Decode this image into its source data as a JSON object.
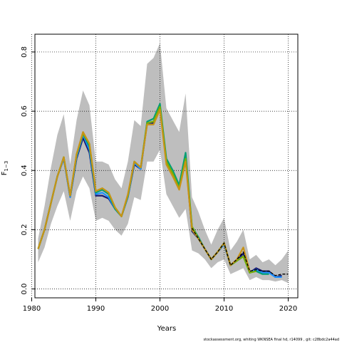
{
  "chart_data": {
    "type": "line",
    "xlabel": "Years",
    "ylabel_main": "F",
    "ylabel_sub": "1−3",
    "xlim": [
      1980.5,
      2021.5
    ],
    "ylim": [
      -0.03,
      0.86
    ],
    "x_ticks": [
      1980,
      1990,
      2000,
      2010,
      2020
    ],
    "y_ticks": [
      0.0,
      0.2,
      0.4,
      0.6,
      0.8
    ],
    "y_tick_labels": [
      "0.0",
      "0.2",
      "0.4",
      "0.6",
      "0.8"
    ],
    "grid": "dotted",
    "footer": "stockassessment.org,  whiting  WKNSEA  final  hd,  r14099 ,  git:  c28bdc2a44ad",
    "years": [
      1981,
      1982,
      1983,
      1984,
      1985,
      1986,
      1987,
      1988,
      1989,
      1990,
      1991,
      1992,
      1993,
      1994,
      1995,
      1996,
      1997,
      1998,
      1999,
      2000,
      2001,
      2002,
      2003,
      2004,
      2005,
      2006,
      2007,
      2008,
      2009,
      2010,
      2011,
      2012,
      2013,
      2014,
      2015,
      2016,
      2017,
      2018,
      2019,
      2020
    ],
    "band": {
      "color": "#bebebe",
      "lower": [
        0.09,
        0.14,
        0.22,
        0.28,
        0.33,
        0.23,
        0.33,
        0.38,
        0.34,
        0.23,
        0.24,
        0.23,
        0.2,
        0.18,
        0.22,
        0.31,
        0.3,
        0.43,
        0.43,
        0.47,
        0.32,
        0.28,
        0.24,
        0.27,
        0.13,
        0.12,
        0.1,
        0.07,
        0.09,
        0.1,
        0.05,
        0.06,
        0.07,
        0.03,
        0.04,
        0.03,
        0.03,
        0.025,
        0.03,
        0.02
      ],
      "upper": [
        0.17,
        0.28,
        0.41,
        0.52,
        0.59,
        0.42,
        0.57,
        0.67,
        0.62,
        0.43,
        0.43,
        0.42,
        0.37,
        0.34,
        0.43,
        0.57,
        0.55,
        0.76,
        0.78,
        0.83,
        0.61,
        0.57,
        0.53,
        0.66,
        0.31,
        0.26,
        0.2,
        0.15,
        0.2,
        0.24,
        0.13,
        0.16,
        0.2,
        0.1,
        0.115,
        0.09,
        0.1,
        0.08,
        0.1,
        0.13
      ]
    },
    "series": [
      {
        "color": "#191970",
        "values": [
          0.135,
          0.2,
          0.29,
          0.38,
          0.44,
          0.31,
          0.44,
          0.51,
          0.46,
          0.315,
          0.315,
          0.305,
          0.27,
          0.245,
          0.31,
          0.42,
          0.405,
          0.56,
          0.56,
          0.61,
          0.43,
          0.39,
          0.345,
          0.445,
          0.195,
          0.17,
          0.135,
          0.1,
          0.125,
          0.15,
          0.08,
          0.095,
          0.12,
          0.055,
          0.07,
          0.06,
          0.06,
          0.04,
          0.045,
          null
        ]
      },
      {
        "color": "#1e90ff",
        "values": [
          0.135,
          0.2,
          0.29,
          0.38,
          0.44,
          0.31,
          0.445,
          0.52,
          0.47,
          0.32,
          0.325,
          0.31,
          0.27,
          0.245,
          0.31,
          0.425,
          0.405,
          0.56,
          0.565,
          0.615,
          0.435,
          0.395,
          0.35,
          0.455,
          0.2,
          0.17,
          0.135,
          0.1,
          0.125,
          0.15,
          0.08,
          0.095,
          0.11,
          0.055,
          0.065,
          0.055,
          0.055,
          0.04,
          0.04,
          null
        ]
      },
      {
        "color": "#009e73",
        "values": [
          0.135,
          0.2,
          0.29,
          0.38,
          0.445,
          0.315,
          0.45,
          0.525,
          0.48,
          0.325,
          0.335,
          0.32,
          0.27,
          0.245,
          0.315,
          0.43,
          0.41,
          0.565,
          0.575,
          0.625,
          0.44,
          0.4,
          0.35,
          0.46,
          0.21,
          0.175,
          0.135,
          0.1,
          0.125,
          0.155,
          0.08,
          0.095,
          0.11,
          0.055,
          0.06,
          0.05,
          0.05,
          null,
          null,
          null
        ]
      },
      {
        "color": "#7cae00",
        "values": [
          0.135,
          0.2,
          0.29,
          0.38,
          0.445,
          0.315,
          0.455,
          0.525,
          0.49,
          0.33,
          0.34,
          0.325,
          0.275,
          0.245,
          0.315,
          0.43,
          0.41,
          0.56,
          0.565,
          0.615,
          0.43,
          0.39,
          0.34,
          0.44,
          0.21,
          0.17,
          0.135,
          0.1,
          0.125,
          0.155,
          0.08,
          0.095,
          0.11,
          0.055,
          0.06,
          null,
          null,
          null,
          null,
          null
        ]
      },
      {
        "color": "#c79316",
        "values": [
          0.135,
          0.2,
          0.29,
          0.38,
          0.445,
          0.315,
          0.455,
          0.53,
          0.49,
          0.33,
          0.34,
          0.325,
          0.275,
          0.245,
          0.32,
          0.43,
          0.41,
          0.555,
          0.555,
          0.605,
          0.42,
          0.38,
          0.335,
          0.43,
          0.2,
          0.17,
          0.135,
          0.1,
          0.125,
          0.155,
          0.08,
          0.1,
          0.14,
          0.06,
          null,
          null,
          null,
          null,
          null,
          null
        ]
      },
      {
        "color": "#000000",
        "dashed": true,
        "values": [
          null,
          null,
          null,
          null,
          null,
          null,
          null,
          null,
          null,
          null,
          null,
          null,
          null,
          null,
          null,
          null,
          null,
          null,
          null,
          null,
          null,
          null,
          null,
          null,
          0.205,
          0.17,
          0.135,
          0.1,
          0.125,
          0.155,
          0.08,
          0.1,
          0.125,
          0.06,
          0.065,
          0.06,
          0.06,
          0.045,
          0.05,
          0.05
        ]
      }
    ]
  }
}
